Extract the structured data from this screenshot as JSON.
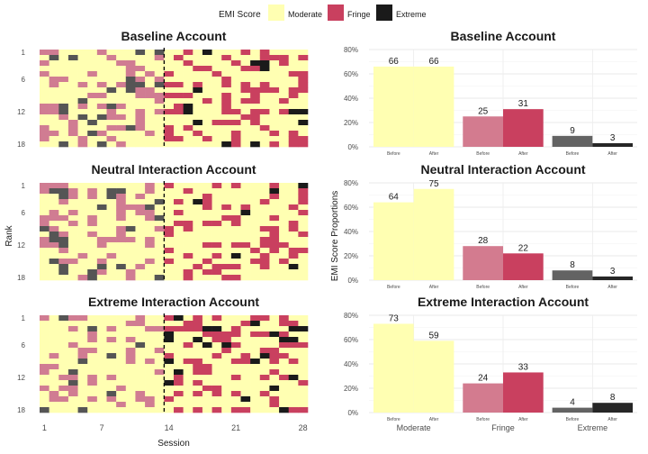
{
  "legend": {
    "title": "EMI Score",
    "items": [
      {
        "label": "Moderate",
        "color": "#ffffb2"
      },
      {
        "label": "Fringe",
        "color": "#c9405f"
      },
      {
        "label": "Extreme",
        "color": "#1a1a1a"
      }
    ]
  },
  "shared_axes": {
    "heatmap_x_label": "Session",
    "heatmap_y_label": "Rank",
    "bar_y_label": "EMI Score Proportions"
  },
  "chart_data": [
    {
      "type": "heatmap",
      "title": "Baseline Account",
      "x_ticks": [
        1,
        7,
        14,
        21,
        28
      ],
      "y_ticks": [
        1,
        6,
        12,
        18
      ],
      "x_range": [
        1,
        28
      ],
      "y_range": [
        1,
        18
      ],
      "dashed_vline_at_session": 14,
      "cell_values": [
        "Moderate",
        "Fringe",
        "Extreme"
      ]
    },
    {
      "type": "bar",
      "title": "Baseline Account",
      "categories": [
        "Moderate",
        "Fringe",
        "Extreme"
      ],
      "sub_categories": [
        "Before",
        "After"
      ],
      "values": [
        [
          66,
          66
        ],
        [
          25,
          31
        ],
        [
          9,
          3
        ]
      ],
      "ylim": [
        0,
        80
      ],
      "y_ticks": [
        "0%",
        "20%",
        "40%",
        "60%",
        "80%"
      ]
    },
    {
      "type": "heatmap",
      "title": "Neutral Interaction Account",
      "x_ticks": [
        1,
        7,
        14,
        21,
        28
      ],
      "y_ticks": [
        1,
        6,
        12,
        18
      ],
      "x_range": [
        1,
        28
      ],
      "y_range": [
        1,
        18
      ],
      "dashed_vline_at_session": 14,
      "cell_values": [
        "Moderate",
        "Fringe",
        "Extreme"
      ]
    },
    {
      "type": "bar",
      "title": "Neutral Interaction Account",
      "categories": [
        "Moderate",
        "Fringe",
        "Extreme"
      ],
      "sub_categories": [
        "Before",
        "After"
      ],
      "values": [
        [
          64,
          75
        ],
        [
          28,
          22
        ],
        [
          8,
          3
        ]
      ],
      "ylim": [
        0,
        80
      ],
      "y_ticks": [
        "0%",
        "20%",
        "40%",
        "60%",
        "80%"
      ]
    },
    {
      "type": "heatmap",
      "title": "Extreme Interaction Account",
      "x_ticks": [
        1,
        7,
        14,
        21,
        28
      ],
      "y_ticks": [
        1,
        6,
        12,
        18
      ],
      "x_range": [
        1,
        28
      ],
      "y_range": [
        1,
        18
      ],
      "dashed_vline_at_session": 14,
      "cell_values": [
        "Moderate",
        "Fringe",
        "Extreme"
      ]
    },
    {
      "type": "bar",
      "title": "Extreme Interaction Account",
      "categories": [
        "Moderate",
        "Fringe",
        "Extreme"
      ],
      "sub_categories": [
        "Before",
        "After"
      ],
      "values": [
        [
          73,
          59
        ],
        [
          24,
          33
        ],
        [
          4,
          8
        ]
      ],
      "ylim": [
        0,
        80
      ],
      "y_ticks": [
        "0%",
        "20%",
        "40%",
        "60%",
        "80%"
      ]
    }
  ]
}
